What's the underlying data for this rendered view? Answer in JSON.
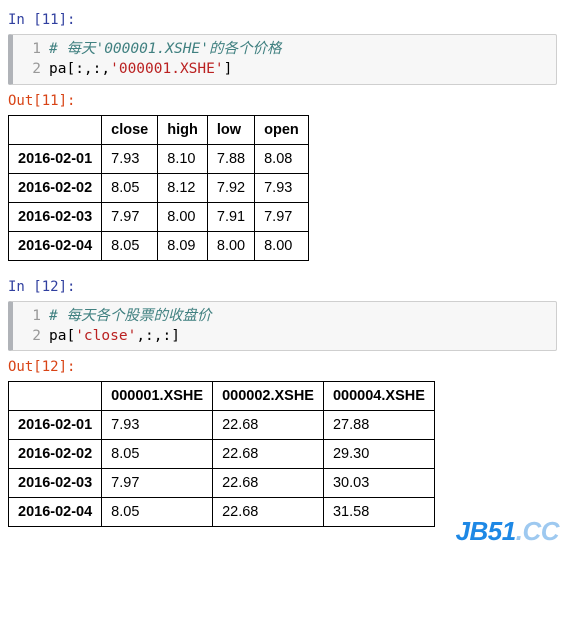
{
  "cells": [
    {
      "in_prompt": "In [11]:",
      "out_prompt": "Out[11]:",
      "code": {
        "lines": [
          {
            "n": "1",
            "segs": [
              {
                "cls": "c-comment",
                "t": "# 每天'000001.XSHE'的各个价格"
              }
            ]
          },
          {
            "n": "2",
            "segs": [
              {
                "cls": "",
                "t": "pa[:,:,"
              },
              {
                "cls": "c-string",
                "t": "'000001.XSHE'"
              },
              {
                "cls": "",
                "t": "]"
              }
            ]
          }
        ]
      },
      "table": {
        "corner": "",
        "columns": [
          "close",
          "high",
          "low",
          "open"
        ],
        "rows": [
          {
            "head": "2016-02-01",
            "cells": [
              "7.93",
              "8.10",
              "7.88",
              "8.08"
            ]
          },
          {
            "head": "2016-02-02",
            "cells": [
              "8.05",
              "8.12",
              "7.92",
              "7.93"
            ]
          },
          {
            "head": "2016-02-03",
            "cells": [
              "7.97",
              "8.00",
              "7.91",
              "7.97"
            ]
          },
          {
            "head": "2016-02-04",
            "cells": [
              "8.05",
              "8.09",
              "8.00",
              "8.00"
            ]
          }
        ]
      }
    },
    {
      "in_prompt": "In [12]:",
      "out_prompt": "Out[12]:",
      "code": {
        "lines": [
          {
            "n": "1",
            "segs": [
              {
                "cls": "c-comment",
                "t": "# 每天各个股票的收盘价"
              }
            ]
          },
          {
            "n": "2",
            "segs": [
              {
                "cls": "",
                "t": "pa["
              },
              {
                "cls": "c-string",
                "t": "'close'"
              },
              {
                "cls": "",
                "t": ",:,:]"
              }
            ]
          }
        ]
      },
      "table": {
        "corner": "",
        "columns": [
          "000001.XSHE",
          "000002.XSHE",
          "000004.XSHE"
        ],
        "rows": [
          {
            "head": "2016-02-01",
            "cells": [
              "7.93",
              "22.68",
              "27.88"
            ]
          },
          {
            "head": "2016-02-02",
            "cells": [
              "8.05",
              "22.68",
              "29.30"
            ]
          },
          {
            "head": "2016-02-03",
            "cells": [
              "7.97",
              "22.68",
              "30.03"
            ]
          },
          {
            "head": "2016-02-04",
            "cells": [
              "8.05",
              "22.68",
              "31.58"
            ]
          }
        ]
      }
    }
  ],
  "watermark": {
    "part1": "JB51",
    "part2": ".CC"
  },
  "colors": {
    "in_prompt": "#303F9F",
    "out_prompt": "#D84315",
    "comment": "#408080",
    "string": "#BA2121",
    "gutter_bg": "#f7f7f7",
    "border": "#cfcfcf",
    "watermark1": "#1E88E5",
    "watermark2": "#9ec9f0"
  }
}
